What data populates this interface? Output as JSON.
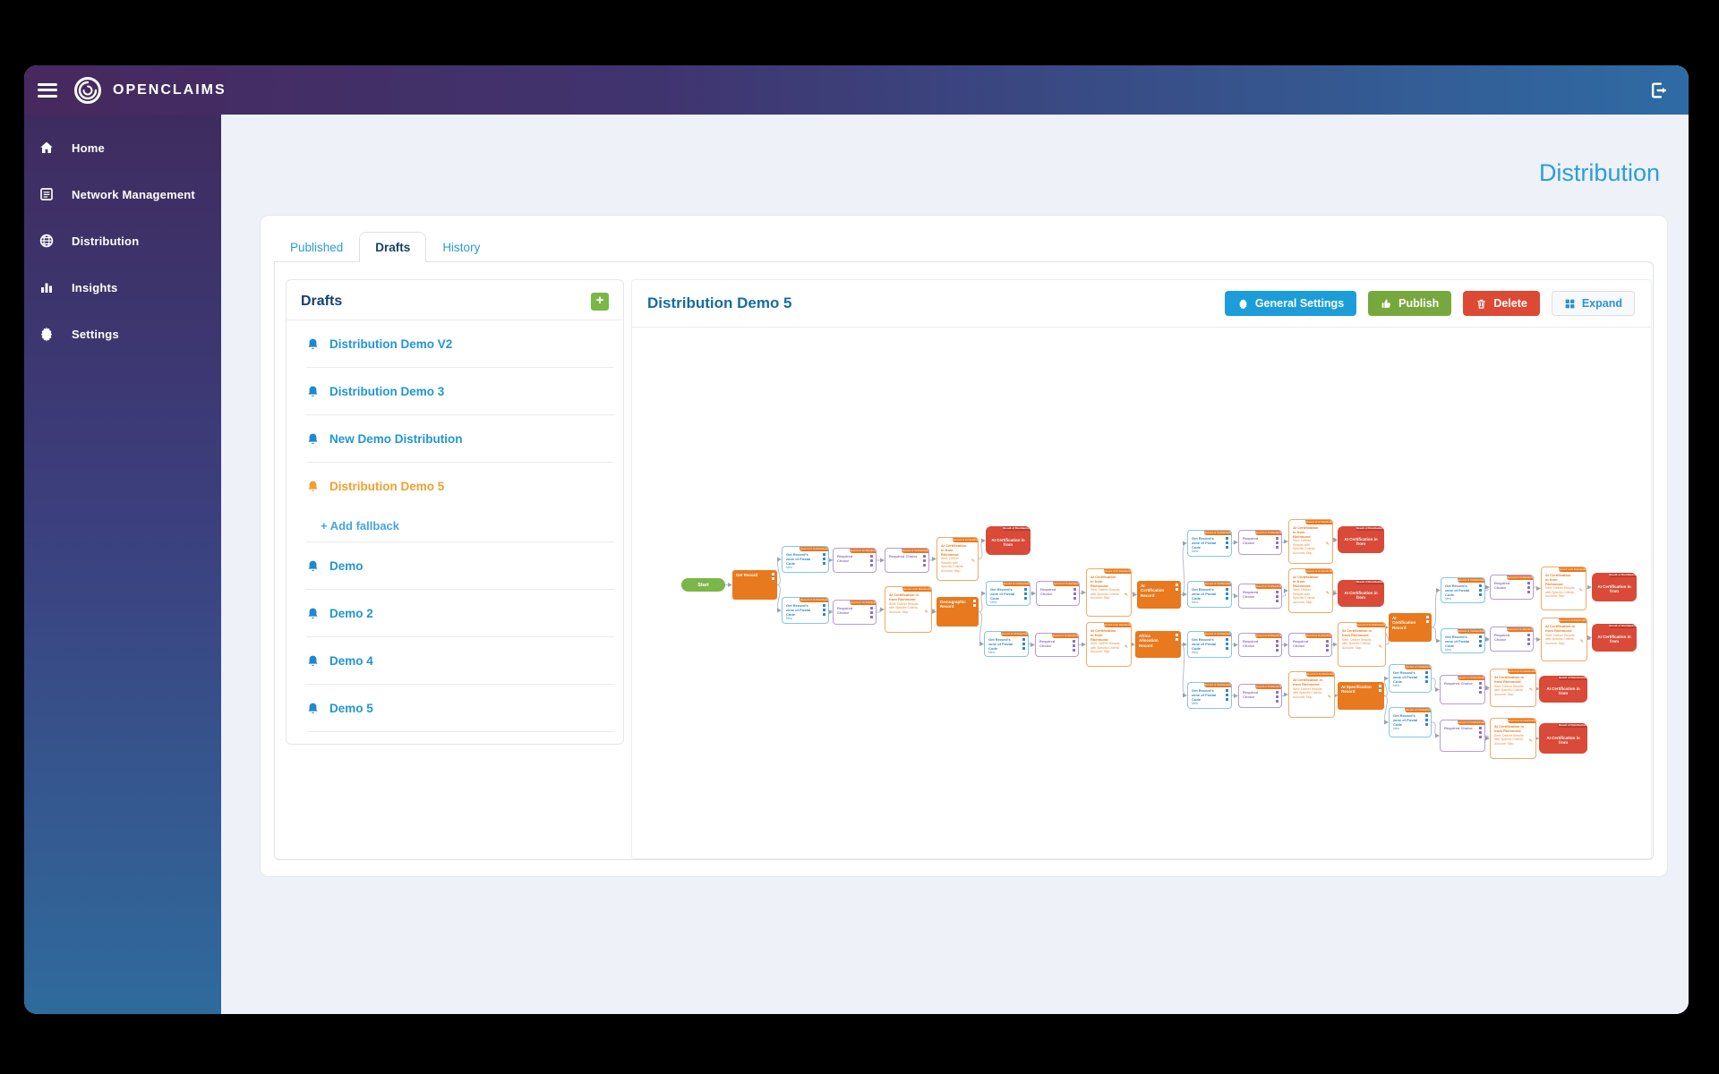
{
  "header": {
    "brand": "OPENCLAIMS"
  },
  "sidebar": {
    "items": [
      {
        "label": "Home",
        "icon": "home-icon"
      },
      {
        "label": "Network Management",
        "icon": "network-icon"
      },
      {
        "label": "Distribution",
        "icon": "globe-icon"
      },
      {
        "label": "Insights",
        "icon": "insights-icon"
      },
      {
        "label": "Settings",
        "icon": "gear-icon"
      }
    ]
  },
  "page": {
    "title": "Distribution"
  },
  "tabs": [
    {
      "label": "Published",
      "active": false
    },
    {
      "label": "Drafts",
      "active": true
    },
    {
      "label": "History",
      "active": false
    }
  ],
  "drafts_panel": {
    "title": "Drafts",
    "add_button_label": "+",
    "items": [
      {
        "label": "Distribution Demo V2"
      },
      {
        "label": "Distribution Demo 3"
      },
      {
        "label": "New Demo Distribution"
      },
      {
        "label": "Distribution Demo 5",
        "active": true,
        "fallback_link": "+ Add fallback"
      },
      {
        "label": "Demo"
      },
      {
        "label": "Demo 2"
      },
      {
        "label": "Demo 4"
      },
      {
        "label": "Demo 5"
      }
    ]
  },
  "detail": {
    "title": "Distribution Demo 5",
    "buttons": [
      {
        "label": "General Settings",
        "icon": "gear-icon",
        "bg": "#1b9dd9",
        "fg": "#ffffff"
      },
      {
        "label": "Publish",
        "icon": "thumb-up-icon",
        "bg": "#77a83d",
        "fg": "#ffffff"
      },
      {
        "label": "Delete",
        "icon": "trash-icon",
        "bg": "#dc4a35",
        "fg": "#ffffff"
      },
      {
        "label": "Expand",
        "icon": "expand-grid-icon",
        "bg": "#f8f9fb",
        "fg": "#2b93d1",
        "border": "#d9dde3"
      }
    ]
  },
  "colors": {
    "appbar_gradient": [
      "#46295e",
      "#2f6ba3"
    ],
    "sidebar_gradient": [
      "#3e2c5f",
      "#2f6b9d"
    ],
    "content_bg": "#eef1f7",
    "accent_blue": "#2b9cd8",
    "navy": "#15406b",
    "active_orange": "#f0a02f",
    "flow_action": "#e8791e",
    "flow_end": "#d94a38",
    "flow_start": "#7ab648",
    "flow_blue": "#2e86c1",
    "flow_purple": "#8e6fc0",
    "edge": "#b9bfc9"
  },
  "flow": {
    "templates": {
      "card_header": "Record of OnDistribute",
      "blue_lines": [
        "Get Record's zone of Postal Code",
        "New"
      ],
      "purple_lines": [
        "Required Choice"
      ],
      "orange_header": "Record of AI Distribution",
      "orange_lines": [
        "AI Certification in from Richmond",
        "Sent: Deliver Results with Specific Criteria",
        "Account: Skip"
      ],
      "end_header": "Result of Distribution",
      "end_label": "AI Certification in from"
    },
    "nodes": [
      [
        "s",
        55,
        279,
        49,
        15,
        "Start"
      ],
      [
        "a",
        112,
        270,
        50,
        33,
        "Get Record"
      ],
      [
        "b",
        167,
        243,
        53,
        30
      ],
      [
        "p",
        224,
        245,
        49,
        28
      ],
      [
        "p",
        282,
        245,
        50,
        28
      ],
      [
        "o",
        340,
        233,
        47,
        49
      ],
      [
        "e",
        395,
        221,
        50,
        32
      ],
      [
        "b",
        167,
        300,
        53,
        30
      ],
      [
        "p",
        224,
        303,
        49,
        28
      ],
      [
        "o",
        282,
        288,
        53,
        52
      ],
      [
        "a",
        340,
        300,
        47,
        33,
        "Demographic Record"
      ],
      [
        "b",
        395,
        282,
        50,
        28
      ],
      [
        "p",
        451,
        282,
        49,
        28
      ],
      [
        "o",
        507,
        268,
        51,
        54
      ],
      [
        "a",
        564,
        282,
        49,
        31,
        "AI Certification Record"
      ],
      [
        "b",
        620,
        225,
        50,
        30
      ],
      [
        "p",
        677,
        225,
        49,
        28
      ],
      [
        "o",
        733,
        213,
        50,
        50
      ],
      [
        "e",
        788,
        221,
        52,
        30
      ],
      [
        "b",
        620,
        282,
        50,
        30
      ],
      [
        "p",
        677,
        285,
        49,
        28
      ],
      [
        "o",
        733,
        268,
        50,
        50
      ],
      [
        "e",
        788,
        281,
        52,
        30
      ],
      [
        "b",
        393,
        338,
        50,
        29
      ],
      [
        "p",
        450,
        340,
        49,
        27
      ],
      [
        "o",
        507,
        328,
        51,
        50
      ],
      [
        "a",
        562,
        338,
        51,
        30,
        "Africa Allocation Record"
      ],
      [
        "b",
        620,
        338,
        50,
        30
      ],
      [
        "p",
        677,
        340,
        49,
        27
      ],
      [
        "p",
        733,
        340,
        49,
        27
      ],
      [
        "o",
        788,
        328,
        54,
        50
      ],
      [
        "a",
        845,
        318,
        48,
        32,
        "AI Certification Record"
      ],
      [
        "b",
        903,
        278,
        50,
        29
      ],
      [
        "p",
        958,
        275,
        49,
        28
      ],
      [
        "o",
        1015,
        266,
        51,
        49
      ],
      [
        "e",
        1072,
        273,
        50,
        32
      ],
      [
        "b",
        903,
        335,
        50,
        28
      ],
      [
        "p",
        958,
        333,
        49,
        28
      ],
      [
        "o",
        1015,
        323,
        52,
        49
      ],
      [
        "e",
        1072,
        330,
        50,
        31
      ],
      [
        "b",
        620,
        395,
        50,
        30
      ],
      [
        "p",
        677,
        397,
        49,
        27
      ],
      [
        "o",
        733,
        383,
        52,
        52
      ],
      [
        "a",
        788,
        395,
        52,
        31,
        "AI Specification Record"
      ],
      [
        "b",
        845,
        375,
        48,
        32
      ],
      [
        "p",
        902,
        387,
        51,
        33
      ],
      [
        "o",
        958,
        380,
        52,
        43
      ],
      [
        "e",
        1013,
        388,
        54,
        30
      ],
      [
        "b",
        845,
        423,
        48,
        34
      ],
      [
        "p",
        902,
        437,
        51,
        36
      ],
      [
        "o",
        958,
        435,
        52,
        46
      ],
      [
        "e",
        1013,
        441,
        54,
        34
      ]
    ],
    "edges": [
      [
        0,
        1
      ],
      [
        1,
        2
      ],
      [
        1,
        7
      ],
      [
        2,
        3
      ],
      [
        3,
        4
      ],
      [
        4,
        5
      ],
      [
        5,
        6
      ],
      [
        7,
        8
      ],
      [
        8,
        9
      ],
      [
        9,
        10
      ],
      [
        10,
        11
      ],
      [
        10,
        23
      ],
      [
        11,
        12
      ],
      [
        12,
        13
      ],
      [
        13,
        14
      ],
      [
        14,
        15
      ],
      [
        14,
        19
      ],
      [
        15,
        16
      ],
      [
        16,
        17
      ],
      [
        17,
        18
      ],
      [
        19,
        20
      ],
      [
        20,
        21
      ],
      [
        21,
        22
      ],
      [
        23,
        24
      ],
      [
        24,
        25
      ],
      [
        25,
        26
      ],
      [
        26,
        27
      ],
      [
        26,
        40
      ],
      [
        27,
        28
      ],
      [
        28,
        29
      ],
      [
        29,
        30
      ],
      [
        30,
        31
      ],
      [
        31,
        32
      ],
      [
        31,
        36
      ],
      [
        32,
        33
      ],
      [
        33,
        34
      ],
      [
        34,
        35
      ],
      [
        36,
        37
      ],
      [
        37,
        38
      ],
      [
        38,
        39
      ],
      [
        40,
        41
      ],
      [
        41,
        42
      ],
      [
        42,
        43
      ],
      [
        43,
        44
      ],
      [
        43,
        48
      ],
      [
        44,
        45
      ],
      [
        45,
        46
      ],
      [
        46,
        47
      ],
      [
        48,
        49
      ],
      [
        49,
        50
      ],
      [
        50,
        51
      ]
    ]
  }
}
